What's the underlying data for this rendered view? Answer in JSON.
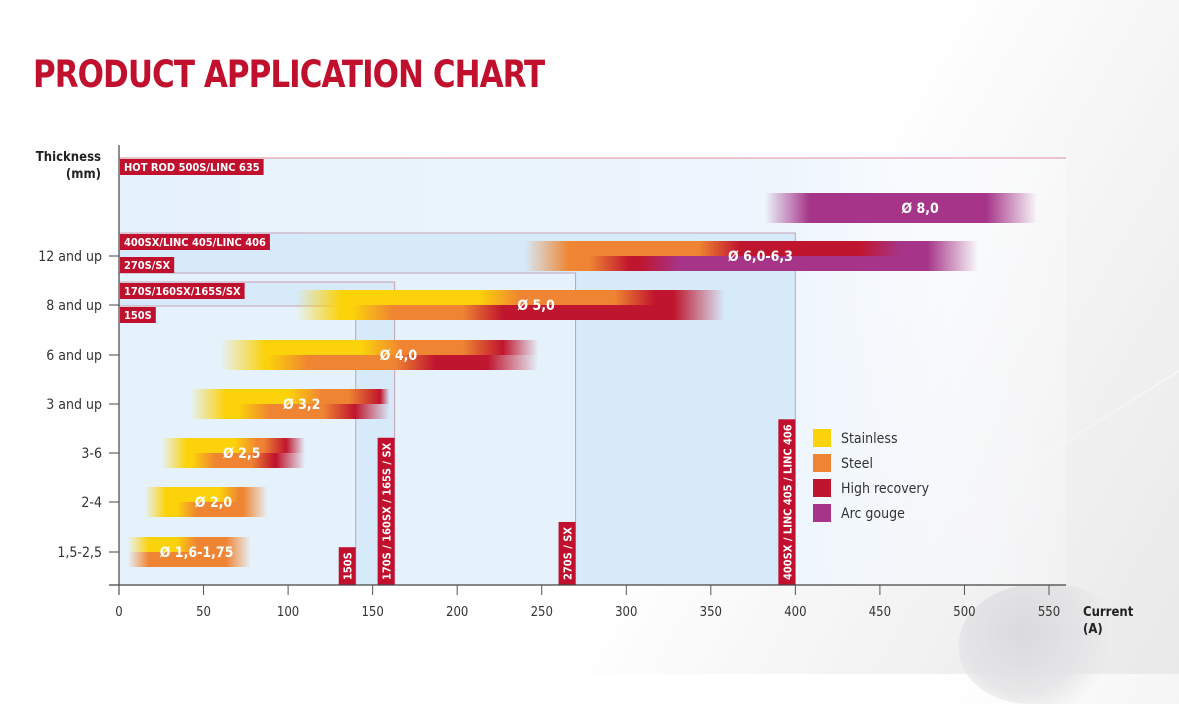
{
  "title": "PRODUCT APPLICATION CHART",
  "colors": {
    "title": "#c0102d",
    "machine_label_bg": "#c0102d",
    "box_fill": "#dcedf9",
    "box_fill_light": "#e8f3fc",
    "box_stroke": "#c9a0b4"
  },
  "chart_data": {
    "type": "bar",
    "title": "PRODUCT APPLICATION CHART",
    "xlabel": "Current (A)",
    "xlabel_lines": [
      "Current",
      "(A)"
    ],
    "ylabel": "Thickness (mm)",
    "ylabel_lines": [
      "Thickness",
      "(mm)"
    ],
    "xlim": [
      0,
      560
    ],
    "xticks": [
      0,
      50,
      100,
      150,
      200,
      250,
      300,
      350,
      400,
      450,
      500,
      550
    ],
    "yticks": [
      "12 and up",
      "8 and up",
      "6 and up",
      "3 and up",
      "3-6",
      "2-4",
      "1,5-2,5"
    ],
    "legend": [
      {
        "name": "Stainless",
        "color": "#fcd20a"
      },
      {
        "name": "Steel",
        "color": "#ef8532"
      },
      {
        "name": "High recovery",
        "color": "#c0152e"
      },
      {
        "name": "Arc gouge",
        "color": "#a63589"
      }
    ],
    "legend_position": "right",
    "machines": [
      {
        "name": "HOT ROD 500S / LINC 635",
        "max_current": 560,
        "top_level": "top",
        "vertical_label": false
      },
      {
        "name": "400SX / LINC 405 / LINC 406",
        "max_current": 400,
        "top_level": "12 and up",
        "vertical_label": true
      },
      {
        "name": "270S / SX",
        "max_current": 270,
        "top_level": "12 and up",
        "vertical_label": true
      },
      {
        "name": "170S / 160SX / 165S / SX",
        "max_current": 163,
        "top_level": "8 and up",
        "vertical_label": true
      },
      {
        "name": "150S",
        "max_current": 140,
        "top_level": "8 and up",
        "vertical_label": true
      }
    ],
    "electrodes": [
      {
        "label": "Ø 8,0",
        "row": "8mm",
        "min": 382,
        "max": 543,
        "top": [
          {
            "type": "Arc gouge",
            "from": 382,
            "to": 543
          }
        ],
        "bottom": [
          {
            "type": "Arc gouge",
            "from": 382,
            "to": 543
          }
        ]
      },
      {
        "label": "Ø 6,0-6,3",
        "row": "12 and up",
        "min": 240,
        "max": 508,
        "top": [
          {
            "type": "Steel",
            "from": 240,
            "to": 355
          },
          {
            "type": "High recovery",
            "from": 355,
            "to": 450
          },
          {
            "type": "Arc gouge",
            "from": 450,
            "to": 508
          }
        ],
        "bottom": [
          {
            "type": "Steel",
            "from": 240,
            "to": 290
          },
          {
            "type": "High recovery",
            "from": 290,
            "to": 320
          },
          {
            "type": "Arc gouge",
            "from": 320,
            "to": 508
          }
        ]
      },
      {
        "label": "Ø 5,0",
        "row": "8 and up",
        "min": 105,
        "max": 358,
        "top": [
          {
            "type": "Stainless",
            "from": 105,
            "to": 225
          },
          {
            "type": "Steel",
            "from": 225,
            "to": 305
          },
          {
            "type": "High recovery",
            "from": 305,
            "to": 358
          }
        ],
        "bottom": [
          {
            "type": "Stainless",
            "from": 105,
            "to": 150
          },
          {
            "type": "Steel",
            "from": 150,
            "to": 215
          },
          {
            "type": "High recovery",
            "from": 215,
            "to": 358
          }
        ]
      },
      {
        "label": "Ø 4,0",
        "row": "6 and up",
        "min": 60,
        "max": 248,
        "top": [
          {
            "type": "Stainless",
            "from": 60,
            "to": 155
          },
          {
            "type": "Steel",
            "from": 155,
            "to": 215
          },
          {
            "type": "High recovery",
            "from": 215,
            "to": 248
          }
        ],
        "bottom": [
          {
            "type": "Stainless",
            "from": 60,
            "to": 100
          },
          {
            "type": "Steel",
            "from": 100,
            "to": 175
          },
          {
            "type": "High recovery",
            "from": 175,
            "to": 248
          }
        ]
      },
      {
        "label": "Ø 3,2",
        "row": "3 and up",
        "min": 42,
        "max": 160,
        "top": [
          {
            "type": "Stainless",
            "from": 42,
            "to": 110
          },
          {
            "type": "Steel",
            "from": 110,
            "to": 145
          },
          {
            "type": "High recovery",
            "from": 145,
            "to": 160
          }
        ],
        "bottom": [
          {
            "type": "Stainless",
            "from": 42,
            "to": 80
          },
          {
            "type": "Steel",
            "from": 80,
            "to": 130
          },
          {
            "type": "High recovery",
            "from": 130,
            "to": 160
          }
        ]
      },
      {
        "label": "Ø 2,5",
        "row": "3-6",
        "min": 25,
        "max": 110,
        "top": [
          {
            "type": "Stainless",
            "from": 25,
            "to": 75
          },
          {
            "type": "Steel",
            "from": 75,
            "to": 92
          },
          {
            "type": "High recovery",
            "from": 92,
            "to": 110
          }
        ],
        "bottom": [
          {
            "type": "Stainless",
            "from": 25,
            "to": 50
          },
          {
            "type": "Steel",
            "from": 50,
            "to": 85
          },
          {
            "type": "High recovery",
            "from": 85,
            "to": 110
          }
        ]
      },
      {
        "label": "Ø 2,0",
        "row": "2-4",
        "min": 15,
        "max": 88,
        "top": [
          {
            "type": "Stainless",
            "from": 15,
            "to": 65
          },
          {
            "type": "Steel",
            "from": 65,
            "to": 88
          }
        ],
        "bottom": [
          {
            "type": "Stainless",
            "from": 15,
            "to": 40
          },
          {
            "type": "Steel",
            "from": 40,
            "to": 88
          }
        ]
      },
      {
        "label": "Ø 1,6-1,75",
        "row": "1,5-2,5",
        "min": 5,
        "max": 78,
        "top": [
          {
            "type": "Stainless",
            "from": 5,
            "to": 40
          },
          {
            "type": "Steel",
            "from": 40,
            "to": 78
          }
        ],
        "bottom": [
          {
            "type": "Steel",
            "from": 5,
            "to": 78
          }
        ]
      }
    ]
  }
}
